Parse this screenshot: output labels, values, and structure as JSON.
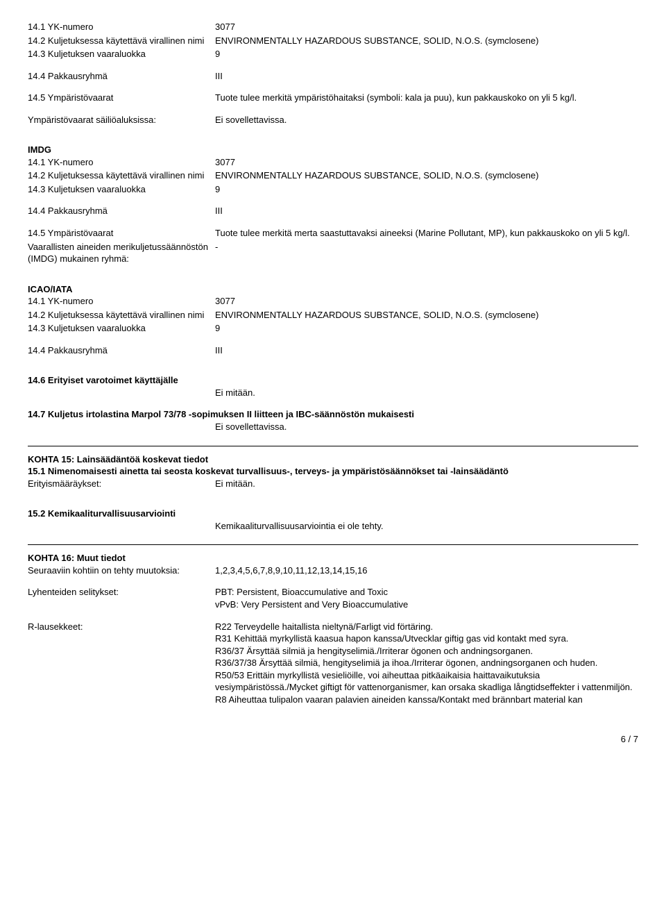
{
  "sec1": {
    "un_label": "14.1 YK-numero",
    "un_value": "3077",
    "name_label": "14.2 Kuljetuksessa käytettävä virallinen nimi",
    "name_value": "ENVIRONMENTALLY HAZARDOUS SUBSTANCE, SOLID, N.O.S. (symclosene)",
    "class_label": "14.3 Kuljetuksen vaaraluokka",
    "class_value": "9",
    "pkg_label": "14.4 Pakkausryhmä",
    "pkg_value": "III",
    "env_label": "14.5 Ympäristövaarat",
    "env_value": "Tuote tulee merkitä ympäristöhaitaksi (symboli: kala ja puu), kun pakkauskoko on yli 5 kg/l.",
    "tank_label": "Ympäristövaarat säiliöaluksissa:",
    "tank_value": "Ei sovellettavissa."
  },
  "imdg": {
    "heading": "IMDG",
    "un_label": "14.1 YK-numero",
    "un_value": "3077",
    "name_label": "14.2 Kuljetuksessa käytettävä virallinen nimi",
    "name_value": "ENVIRONMENTALLY HAZARDOUS SUBSTANCE, SOLID, N.O.S. (symclosene)",
    "class_label": "14.3 Kuljetuksen vaaraluokka",
    "class_value": "9",
    "pkg_label": "14.4 Pakkausryhmä",
    "pkg_value": "III",
    "env_label": "14.5 Ympäristövaarat",
    "env_value": "Tuote tulee merkitä merta saastuttavaksi aineeksi (Marine Pollutant, MP), kun pakkauskoko on yli 5 kg/l.",
    "group_label": "Vaarallisten aineiden merikuljetussäännöstön (IMDG) mukainen ryhmä:",
    "group_value": "-"
  },
  "icao": {
    "heading": "ICAO/IATA",
    "un_label": "14.1 YK-numero",
    "un_value": "3077",
    "name_label": "14.2 Kuljetuksessa käytettävä virallinen nimi",
    "name_value": "ENVIRONMENTALLY HAZARDOUS SUBSTANCE, SOLID, N.O.S. (symclosene)",
    "class_label": "14.3 Kuljetuksen vaaraluokka",
    "class_value": "9",
    "pkg_label": "14.4 Pakkausryhmä",
    "pkg_value": "III"
  },
  "sec14_6": {
    "heading": "14.6 Erityiset varotoimet käyttäjälle",
    "value": "Ei mitään."
  },
  "sec14_7": {
    "heading": "14.7 Kuljetus irtolastina Marpol 73/78 -sopimuksen II liitteen ja IBC-säännöstön mukaisesti",
    "value": "Ei sovellettavissa."
  },
  "kohta15": {
    "heading": "KOHTA 15: Lainsäädäntöä koskevat tiedot",
    "sub1_heading": "15.1 Nimenomaisesti ainetta tai seosta koskevat turvallisuus-, terveys- ja ympäristösäännökset tai -lainsäädäntö",
    "special_label": "Erityismääräykset:",
    "special_value": "Ei mitään.",
    "sub2_heading": "15.2 Kemikaaliturvallisuusarviointi",
    "sub2_value": "Kemikaaliturvallisuusarviointia ei ole tehty."
  },
  "kohta16": {
    "heading": "KOHTA 16: Muut tiedot",
    "changes_label": "Seuraaviin kohtiin on tehty muutoksia:",
    "changes_value": "1,2,3,4,5,6,7,8,9,10,11,12,13,14,15,16",
    "abbr_label": "Lyhenteiden selitykset:",
    "abbr_line1": "PBT: Persistent, Bioaccumulative and Toxic",
    "abbr_line2": "vPvB: Very Persistent and Very Bioaccumulative",
    "r_label": "R-lausekkeet:",
    "r_line1": "R22 Terveydelle haitallista nieltynä/Farligt vid förtäring.",
    "r_line2": "R31 Kehittää myrkyllistä kaasua hapon kanssa/Utvecklar giftig gas vid kontakt med syra.",
    "r_line3": "R36/37 Ärsyttää silmiä ja hengityselimiä./Irriterar ögonen och andningsorganen.",
    "r_line4": "R36/37/38 Ärsyttää silmiä, hengityselimiä ja ihoa./Irriterar ögonen, andningsorganen och huden.",
    "r_line5": "R50/53 Erittäin myrkyllistä vesieliöille, voi aiheuttaa pitkäaikaisia haittavaikutuksia vesiympäristössä./Mycket giftigt för vattenorganismer, kan orsaka skadliga långtidseffekter i vattenmiljön.",
    "r_line6": "R8 Aiheuttaa tulipalon vaaran palavien aineiden kanssa/Kontakt med brännbart material kan"
  },
  "footer": "6 / 7"
}
